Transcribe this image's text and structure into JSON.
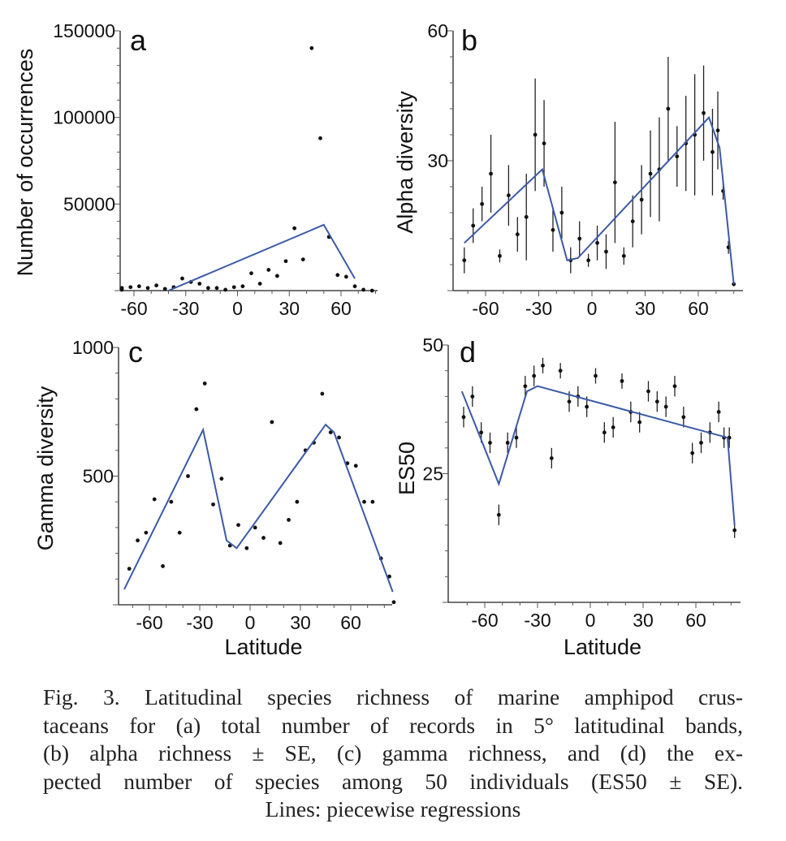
{
  "chart_data": [
    {
      "panel": "a",
      "type": "scatter",
      "ylabel": "Number of occurrences",
      "xlabel": "",
      "xlim": [
        -75,
        80
      ],
      "ylim": [
        0,
        150000
      ],
      "xticks": [
        -60,
        -30,
        0,
        30,
        60
      ],
      "xtick_labels": [
        "-60",
        "-30",
        "0",
        "30",
        "60"
      ],
      "yticks": [
        50000,
        100000,
        150000
      ],
      "ytick_labels": [
        "50000",
        "100000",
        "150000"
      ],
      "points": [
        {
          "x": -72,
          "y": 500
        },
        {
          "x": -67,
          "y": 1500
        },
        {
          "x": -62,
          "y": 2000
        },
        {
          "x": -57,
          "y": 2500
        },
        {
          "x": -52,
          "y": 1500
        },
        {
          "x": -47,
          "y": 3000
        },
        {
          "x": -42,
          "y": 1000
        },
        {
          "x": -37,
          "y": 2000
        },
        {
          "x": -32,
          "y": 7000
        },
        {
          "x": -27,
          "y": 5000
        },
        {
          "x": -22,
          "y": 4000
        },
        {
          "x": -17,
          "y": 1500
        },
        {
          "x": -12,
          "y": 1500
        },
        {
          "x": -7,
          "y": 500
        },
        {
          "x": -2,
          "y": 2000
        },
        {
          "x": 3,
          "y": 2500
        },
        {
          "x": 8,
          "y": 10000
        },
        {
          "x": 13,
          "y": 4000
        },
        {
          "x": 18,
          "y": 12000
        },
        {
          "x": 23,
          "y": 8500
        },
        {
          "x": 28,
          "y": 17000
        },
        {
          "x": 33,
          "y": 36000
        },
        {
          "x": 38,
          "y": 18000
        },
        {
          "x": 43,
          "y": 140000
        },
        {
          "x": 48,
          "y": 88000
        },
        {
          "x": 53,
          "y": 31000
        },
        {
          "x": 58,
          "y": 9000
        },
        {
          "x": 63,
          "y": 8000
        },
        {
          "x": 68,
          "y": 2500
        },
        {
          "x": 73,
          "y": 500
        },
        {
          "x": 78,
          "y": 0
        }
      ],
      "fit": [
        {
          "x": -40,
          "y": 0
        },
        {
          "x": 50,
          "y": 38000
        },
        {
          "x": 68,
          "y": 7000
        }
      ]
    },
    {
      "panel": "b",
      "type": "scatter",
      "ylabel": "Alpha diversity",
      "xlabel": "",
      "xlim": [
        -75,
        80
      ],
      "ylim": [
        0,
        60
      ],
      "xticks": [
        -60,
        -30,
        0,
        30,
        60
      ],
      "xtick_labels": [
        "-60",
        "-30",
        "0",
        "30",
        "60"
      ],
      "yticks": [
        30,
        60
      ],
      "ytick_labels": [
        "30",
        "60"
      ],
      "points": [
        {
          "x": -72,
          "y": 7,
          "se": 3
        },
        {
          "x": -67,
          "y": 15,
          "se": 4
        },
        {
          "x": -62,
          "y": 20,
          "se": 4
        },
        {
          "x": -57,
          "y": 27,
          "se": 9
        },
        {
          "x": -52,
          "y": 8,
          "se": 1.5
        },
        {
          "x": -47,
          "y": 22,
          "se": 7
        },
        {
          "x": -42,
          "y": 13,
          "se": 4
        },
        {
          "x": -37,
          "y": 17,
          "se": 10
        },
        {
          "x": -32,
          "y": 36,
          "se": 13
        },
        {
          "x": -27,
          "y": 34,
          "se": 10
        },
        {
          "x": -22,
          "y": 14,
          "se": 5
        },
        {
          "x": -17,
          "y": 18,
          "se": 6
        },
        {
          "x": -12,
          "y": 7,
          "se": 3
        },
        {
          "x": -7,
          "y": 12,
          "se": 4
        },
        {
          "x": -2,
          "y": 7,
          "se": 1.5
        },
        {
          "x": 3,
          "y": 11,
          "se": 4
        },
        {
          "x": 8,
          "y": 9,
          "se": 4
        },
        {
          "x": 13,
          "y": 25,
          "se": 14
        },
        {
          "x": 18,
          "y": 8,
          "se": 2
        },
        {
          "x": 23,
          "y": 16,
          "se": 6
        },
        {
          "x": 28,
          "y": 21,
          "se": 8
        },
        {
          "x": 33,
          "y": 27,
          "se": 10
        },
        {
          "x": 38,
          "y": 28,
          "se": 12
        },
        {
          "x": 43,
          "y": 42,
          "se": 12
        },
        {
          "x": 48,
          "y": 31,
          "se": 7
        },
        {
          "x": 53,
          "y": 34,
          "se": 11
        },
        {
          "x": 58,
          "y": 36,
          "se": 14
        },
        {
          "x": 63,
          "y": 41,
          "se": 11
        },
        {
          "x": 68,
          "y": 32,
          "se": 10
        },
        {
          "x": 71,
          "y": 37,
          "se": 9
        },
        {
          "x": 74,
          "y": 23,
          "se": 2
        },
        {
          "x": 77,
          "y": 10,
          "se": 1.5
        },
        {
          "x": 80,
          "y": 1.5,
          "se": 0.5
        }
      ],
      "fit": [
        {
          "x": -72,
          "y": 11
        },
        {
          "x": -28,
          "y": 28
        },
        {
          "x": -14,
          "y": 7
        },
        {
          "x": -8,
          "y": 7.5
        },
        {
          "x": 66,
          "y": 40
        },
        {
          "x": 72,
          "y": 33
        },
        {
          "x": 80,
          "y": 1.5
        }
      ]
    },
    {
      "panel": "c",
      "type": "scatter",
      "ylabel": "Gamma diversity",
      "xlabel": "Latitude",
      "xlim": [
        -75,
        80
      ],
      "ylim": [
        0,
        1000
      ],
      "xticks": [
        -60,
        -30,
        0,
        30,
        60
      ],
      "xtick_labels": [
        "-60",
        "-30",
        "0",
        "30",
        "60"
      ],
      "yticks": [
        500,
        1000
      ],
      "ytick_labels": [
        "500",
        "1000"
      ],
      "points": [
        {
          "x": -72,
          "y": 140
        },
        {
          "x": -67,
          "y": 250
        },
        {
          "x": -62,
          "y": 280
        },
        {
          "x": -57,
          "y": 410
        },
        {
          "x": -52,
          "y": 150
        },
        {
          "x": -47,
          "y": 400
        },
        {
          "x": -42,
          "y": 280
        },
        {
          "x": -37,
          "y": 500
        },
        {
          "x": -32,
          "y": 760
        },
        {
          "x": -27,
          "y": 860
        },
        {
          "x": -22,
          "y": 390
        },
        {
          "x": -17,
          "y": 490
        },
        {
          "x": -12,
          "y": 230
        },
        {
          "x": -7,
          "y": 310
        },
        {
          "x": -2,
          "y": 220
        },
        {
          "x": 3,
          "y": 300
        },
        {
          "x": 8,
          "y": 260
        },
        {
          "x": 13,
          "y": 710
        },
        {
          "x": 18,
          "y": 240
        },
        {
          "x": 23,
          "y": 330
        },
        {
          "x": 28,
          "y": 400
        },
        {
          "x": 33,
          "y": 600
        },
        {
          "x": 38,
          "y": 630
        },
        {
          "x": 43,
          "y": 820
        },
        {
          "x": 48,
          "y": 670
        },
        {
          "x": 53,
          "y": 650
        },
        {
          "x": 58,
          "y": 550
        },
        {
          "x": 63,
          "y": 540
        },
        {
          "x": 68,
          "y": 400
        },
        {
          "x": 73,
          "y": 400
        },
        {
          "x": 78,
          "y": 180
        },
        {
          "x": 83,
          "y": 110
        },
        {
          "x": 88,
          "y": 10
        }
      ],
      "fit": [
        {
          "x": -75,
          "y": 60
        },
        {
          "x": -28,
          "y": 680
        },
        {
          "x": -14,
          "y": 250
        },
        {
          "x": -8,
          "y": 220
        },
        {
          "x": 45,
          "y": 700
        },
        {
          "x": 50,
          "y": 670
        },
        {
          "x": 85,
          "y": 50
        }
      ]
    },
    {
      "panel": "d",
      "type": "scatter",
      "ylabel": "ES50",
      "xlabel": "Latitude",
      "xlim": [
        -75,
        80
      ],
      "ylim": [
        0,
        50
      ],
      "xticks": [
        -60,
        -30,
        0,
        30,
        60
      ],
      "xtick_labels": [
        "-60",
        "-30",
        "0",
        "30",
        "60"
      ],
      "yticks": [
        25,
        50
      ],
      "ytick_labels": [
        "25",
        "50"
      ],
      "points": [
        {
          "x": -72,
          "y": 36,
          "se": 2
        },
        {
          "x": -67,
          "y": 40,
          "se": 2
        },
        {
          "x": -62,
          "y": 33,
          "se": 2
        },
        {
          "x": -57,
          "y": 31,
          "se": 2
        },
        {
          "x": -52,
          "y": 17,
          "se": 2
        },
        {
          "x": -47,
          "y": 31,
          "se": 2
        },
        {
          "x": -42,
          "y": 32,
          "se": 2
        },
        {
          "x": -37,
          "y": 42,
          "se": 2
        },
        {
          "x": -32,
          "y": 44,
          "se": 2
        },
        {
          "x": -27,
          "y": 46,
          "se": 1.5
        },
        {
          "x": -22,
          "y": 28,
          "se": 2
        },
        {
          "x": -17,
          "y": 45,
          "se": 1.5
        },
        {
          "x": -12,
          "y": 39,
          "se": 2
        },
        {
          "x": -7,
          "y": 40,
          "se": 2
        },
        {
          "x": -2,
          "y": 38,
          "se": 2
        },
        {
          "x": 3,
          "y": 44,
          "se": 1.5
        },
        {
          "x": 8,
          "y": 33,
          "se": 2
        },
        {
          "x": 13,
          "y": 34,
          "se": 2
        },
        {
          "x": 18,
          "y": 43,
          "se": 1.5
        },
        {
          "x": 23,
          "y": 37,
          "se": 2
        },
        {
          "x": 28,
          "y": 35,
          "se": 2
        },
        {
          "x": 33,
          "y": 41,
          "se": 2
        },
        {
          "x": 38,
          "y": 39,
          "se": 2
        },
        {
          "x": 43,
          "y": 38,
          "se": 2
        },
        {
          "x": 48,
          "y": 42,
          "se": 2
        },
        {
          "x": 53,
          "y": 36,
          "se": 2
        },
        {
          "x": 58,
          "y": 29,
          "se": 2
        },
        {
          "x": 63,
          "y": 31,
          "se": 2
        },
        {
          "x": 68,
          "y": 33,
          "se": 2
        },
        {
          "x": 73,
          "y": 37,
          "se": 2
        },
        {
          "x": 76,
          "y": 32,
          "se": 2
        },
        {
          "x": 79,
          "y": 32,
          "se": 2
        },
        {
          "x": 82,
          "y": 14,
          "se": 1.5
        }
      ],
      "fit": [
        {
          "x": -73,
          "y": 41
        },
        {
          "x": -52,
          "y": 23
        },
        {
          "x": -36,
          "y": 41
        },
        {
          "x": -30,
          "y": 42
        },
        {
          "x": 78,
          "y": 32
        },
        {
          "x": 82,
          "y": 15
        }
      ]
    }
  ],
  "caption": {
    "lines": [
      "Fig. 3. Latitudinal species richness of marine amphipod crus-",
      "taceans for (a) total number of records in 5° latitudinal bands,",
      "(b) alpha richness ± SE, (c) gamma richness, and (d) the ex-",
      "pected number of species among 50 individuals (ES50 ± SE).",
      "Lines: piecewise regressions"
    ]
  },
  "colors": {
    "fit_line": "#3b5aa6",
    "points": "#111111",
    "axes": "#222222"
  }
}
